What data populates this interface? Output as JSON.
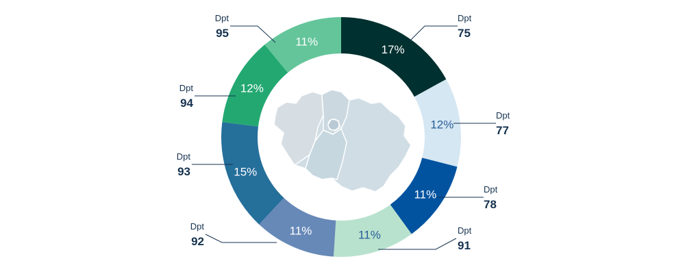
{
  "chart_data": {
    "type": "pie",
    "variant": "donut",
    "title": "",
    "slices": [
      {
        "prefix": "Dpt",
        "department": "75",
        "label": "17%",
        "value": 17,
        "color": "#00302f",
        "text_color": "#ffffff"
      },
      {
        "prefix": "Dpt",
        "department": "77",
        "label": "12%",
        "value": 12,
        "color": "#d5e7f2",
        "text_color": "#2a5d9a"
      },
      {
        "prefix": "Dpt",
        "department": "78",
        "label": "11%",
        "value": 11,
        "color": "#0153a0",
        "text_color": "#ffffff"
      },
      {
        "prefix": "Dpt",
        "department": "91",
        "label": "11%",
        "value": 11,
        "color": "#b8e2cd",
        "text_color": "#2a5d9a"
      },
      {
        "prefix": "Dpt",
        "department": "92",
        "label": "11%",
        "value": 11,
        "color": "#6789b8",
        "text_color": "#ffffff"
      },
      {
        "prefix": "Dpt",
        "department": "93",
        "label": "15%",
        "value": 15,
        "color": "#256f9b",
        "text_color": "#ffffff"
      },
      {
        "prefix": "Dpt",
        "department": "94",
        "label": "12%",
        "value": 12,
        "color": "#24a872",
        "text_color": "#ffffff"
      },
      {
        "prefix": "Dpt",
        "department": "95",
        "label": "11%",
        "value": 11,
        "color": "#64c59a",
        "text_color": "#ffffff"
      }
    ]
  },
  "center_map": {
    "icon": "ile-de-france-map-icon"
  }
}
